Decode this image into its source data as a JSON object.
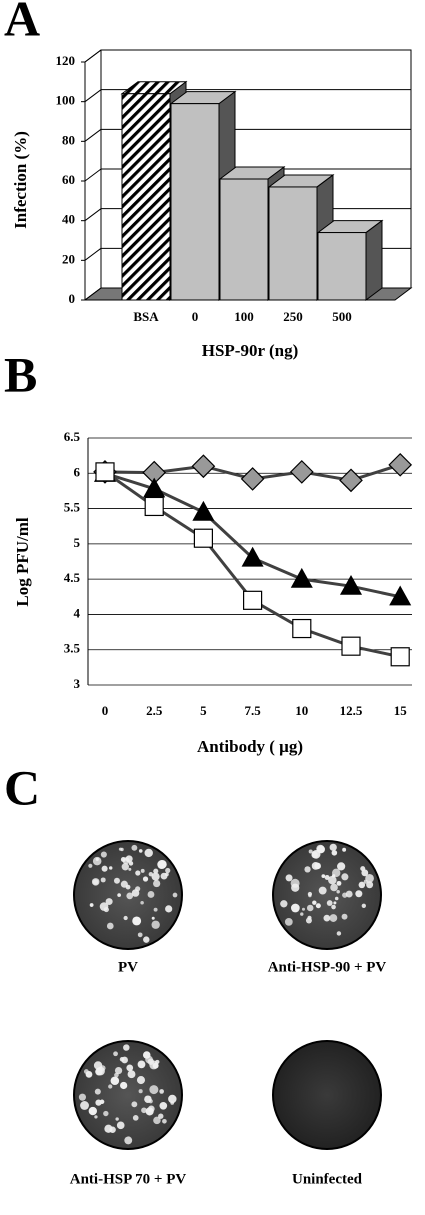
{
  "chart_data": [
    {
      "type": "bar",
      "panel_label": "A",
      "ylabel": "Infection (%)",
      "xlabel": "HSP-90r (ng)",
      "categories": [
        "BSA",
        "0",
        "100",
        "250",
        "500"
      ],
      "values": [
        104,
        99,
        61,
        57,
        34
      ],
      "fills": [
        "hatch",
        "#c0c0c0",
        "#c0c0c0",
        "#c0c0c0",
        "#c0c0c0"
      ],
      "side_color": "#555555",
      "ylim": [
        0,
        120
      ],
      "yticks": [
        0,
        20,
        40,
        60,
        80,
        100,
        120
      ],
      "grid": true
    },
    {
      "type": "line",
      "panel_label": "B",
      "ylabel": "Log PFU/ml",
      "xlabel": "Antibody ( μg)",
      "categories": [
        "0",
        "2.5",
        "5",
        "7.5",
        "10",
        "12.5",
        "15"
      ],
      "line_color": "#404040",
      "series": [
        {
          "marker": "diamond",
          "color": "#999999",
          "values": [
            6.02,
            6.01,
            6.1,
            5.92,
            6.02,
            5.9,
            6.12
          ]
        },
        {
          "marker": "triangle",
          "color": "#000000",
          "values": [
            6.0,
            5.78,
            5.45,
            4.8,
            4.5,
            4.4,
            4.25
          ]
        },
        {
          "marker": "square",
          "color": "#ffffff",
          "values": [
            6.02,
            5.53,
            5.08,
            4.2,
            3.8,
            3.55,
            3.4
          ]
        }
      ],
      "ylim": [
        3,
        6.5
      ],
      "yticks": [
        3,
        3.5,
        4,
        4.5,
        5,
        5.5,
        6,
        6.5
      ],
      "grid": true
    }
  ],
  "panel_c": {
    "label": "C",
    "plates": [
      {
        "caption": "PV",
        "plaques": true
      },
      {
        "caption": "Anti-HSP-90 + PV",
        "plaques": true
      },
      {
        "caption": "Anti-HSP 70 + PV",
        "plaques": true
      },
      {
        "caption": "Uninfected",
        "plaques": false
      }
    ]
  }
}
